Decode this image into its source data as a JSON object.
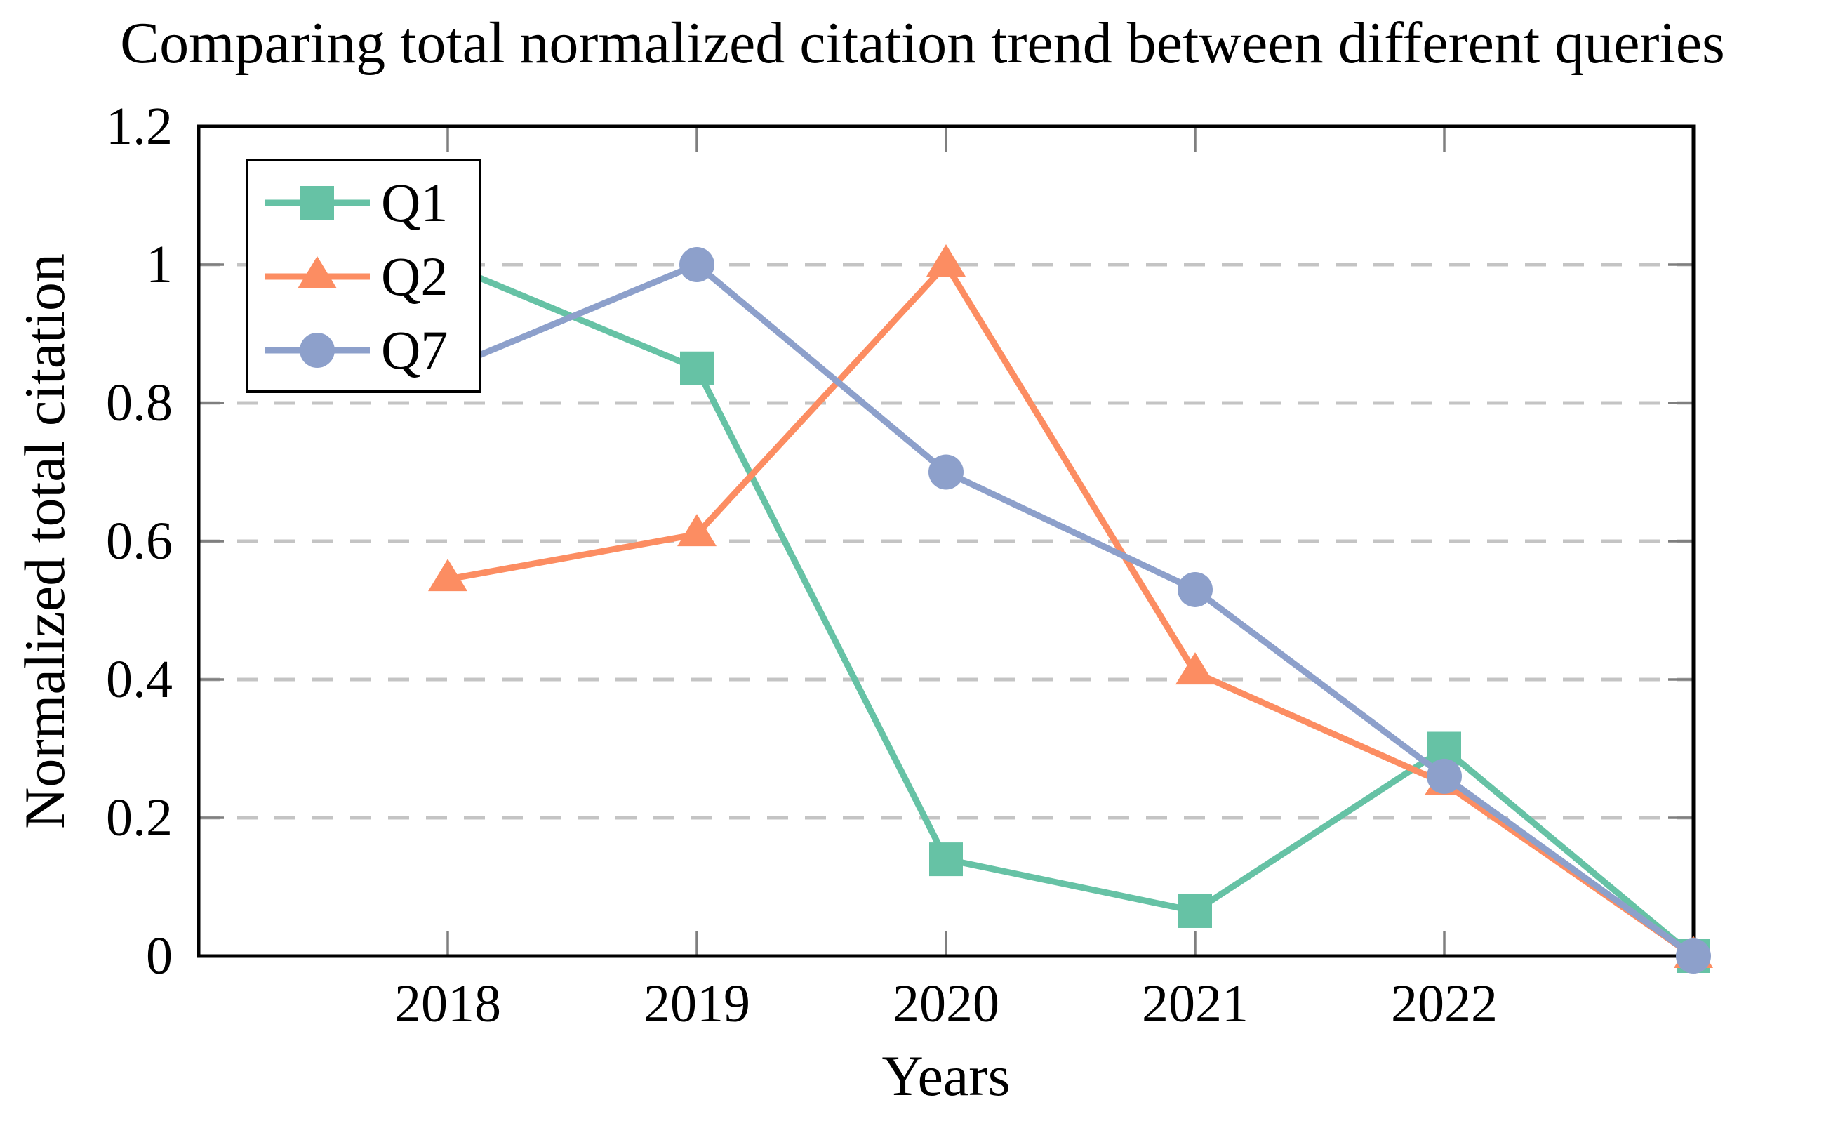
{
  "title": "Comparing total normalized citation trend between different queries",
  "chart_data": {
    "type": "line",
    "title": "Comparing total normalized citation trend between different queries",
    "xlabel": "Years",
    "ylabel": "Normalized total citation",
    "x": [
      2018,
      2019,
      2020,
      2021,
      2022,
      2023
    ],
    "x_ticks": [
      2018,
      2019,
      2020,
      2021,
      2022
    ],
    "x_tick_labels": [
      "2018",
      "2019",
      "2020",
      "2021",
      "2022"
    ],
    "y_ticks": [
      0,
      0.2,
      0.4,
      0.6,
      0.8,
      1,
      1.2
    ],
    "y_tick_labels": [
      "0",
      "0.2",
      "0.4",
      "0.6",
      "0.8",
      "1",
      "1.2"
    ],
    "xlim": [
      2017,
      2023
    ],
    "ylim": [
      0,
      1.2
    ],
    "grid": "horizontal dashed gridlines at 0.2, 0.4, 0.6, 0.8, 1.0",
    "legend_position": "top-left",
    "series": [
      {
        "name": "Q1",
        "marker": "square",
        "color": "#66C2A5",
        "values": [
          1.0,
          0.85,
          0.14,
          0.065,
          0.3,
          0.0
        ]
      },
      {
        "name": "Q2",
        "marker": "triangle",
        "color": "#FC8D62",
        "values": [
          0.545,
          0.61,
          1.0,
          0.41,
          0.25,
          0.0
        ]
      },
      {
        "name": "Q7",
        "marker": "circle",
        "color": "#8DA0CB",
        "values": [
          0.85,
          1.0,
          0.7,
          0.53,
          0.26,
          0.0
        ]
      }
    ],
    "colors": {
      "axis": "#000000",
      "grid": "#c4c4c4",
      "tick": "#7f7f7f",
      "background": "#ffffff"
    }
  }
}
